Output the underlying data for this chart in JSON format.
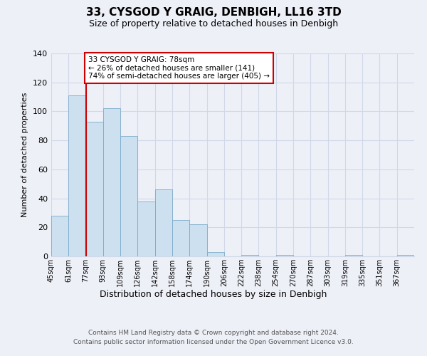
{
  "title": "33, CYSGOD Y GRAIG, DENBIGH, LL16 3TD",
  "subtitle": "Size of property relative to detached houses in Denbigh",
  "xlabel": "Distribution of detached houses by size in Denbigh",
  "ylabel": "Number of detached properties",
  "bar_values": [
    28,
    111,
    93,
    102,
    83,
    38,
    46,
    25,
    22,
    3,
    0,
    1,
    0,
    1,
    0,
    0,
    0,
    1,
    0,
    0,
    1
  ],
  "bar_labels": [
    "45sqm",
    "61sqm",
    "77sqm",
    "93sqm",
    "109sqm",
    "126sqm",
    "142sqm",
    "158sqm",
    "174sqm",
    "190sqm",
    "206sqm",
    "222sqm",
    "238sqm",
    "254sqm",
    "270sqm",
    "287sqm",
    "303sqm",
    "319sqm",
    "335sqm",
    "351sqm",
    "367sqm"
  ],
  "bar_color": "#cce0f0",
  "bar_edge_color": "#7baac9",
  "grid_color": "#d0d8e8",
  "vline_color": "#cc0000",
  "vline_position": 2,
  "annotation_title": "33 CYSGOD Y GRAIG: 78sqm",
  "annotation_line1": "← 26% of detached houses are smaller (141)",
  "annotation_line2": "74% of semi-detached houses are larger (405) →",
  "annotation_box_edgecolor": "#cc0000",
  "ylim": [
    0,
    140
  ],
  "yticks": [
    0,
    20,
    40,
    60,
    80,
    100,
    120,
    140
  ],
  "footer_line1": "Contains HM Land Registry data © Crown copyright and database right 2024.",
  "footer_line2": "Contains public sector information licensed under the Open Government Licence v3.0.",
  "background_color": "#eef0f8",
  "plot_bg_color": "#eef0f8"
}
